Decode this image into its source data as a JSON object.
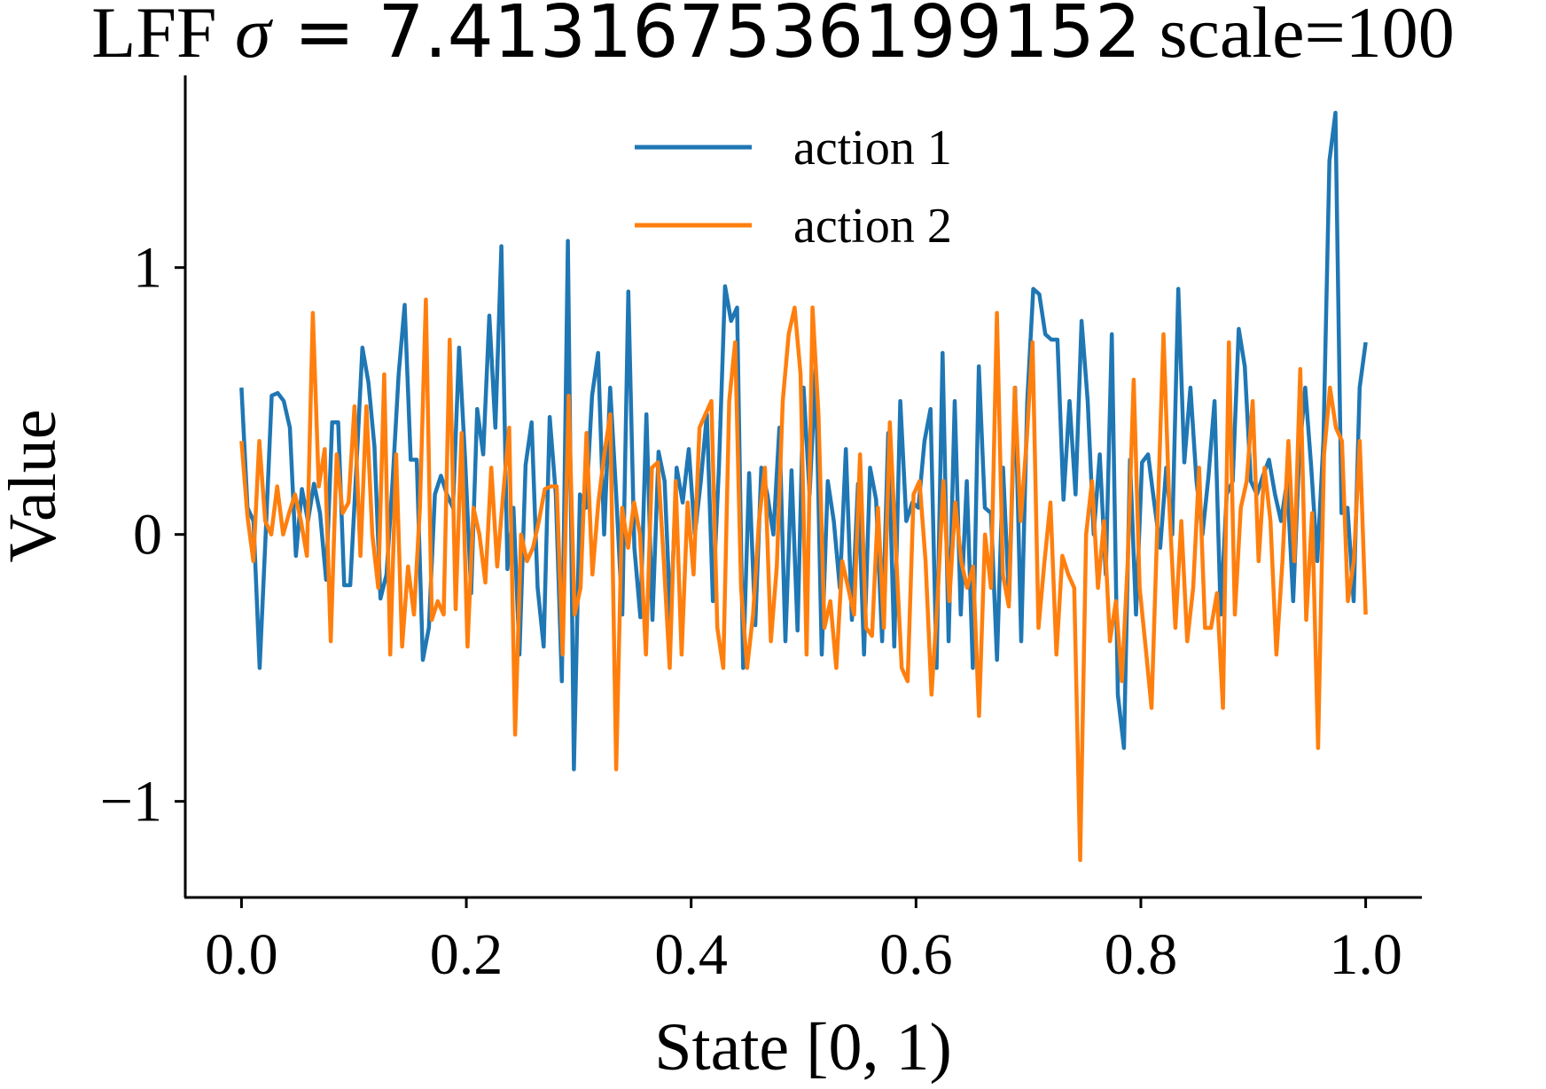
{
  "chart_data": {
    "type": "line",
    "title_prefix": "LFF ",
    "title_sigma_symbol": "σ",
    "title_sigma_value": " = 7.413167536199152",
    "title_suffix": " scale=100",
    "xlabel": "State [0, 1)",
    "ylabel": "Value",
    "xlim": [
      -0.05,
      1.05
    ],
    "ylim": [
      -1.36,
      1.72
    ],
    "xticks": [
      0.0,
      0.2,
      0.4,
      0.6,
      0.8,
      1.0
    ],
    "xtick_labels": [
      "0.0",
      "0.2",
      "0.4",
      "0.6",
      "0.8",
      "1.0"
    ],
    "yticks": [
      -1,
      0,
      1
    ],
    "ytick_labels": [
      "−1",
      "0",
      "1"
    ],
    "grid": false,
    "legend_position": "top-center",
    "series": [
      {
        "name": "action 1",
        "color": "#1f77b4",
        "values": [
          0.55,
          0.1,
          0.05,
          -0.5,
          0.0,
          0.52,
          0.53,
          0.5,
          0.4,
          -0.08,
          0.17,
          0.05,
          0.19,
          0.08,
          -0.17,
          0.42,
          0.42,
          -0.19,
          -0.19,
          0.25,
          0.7,
          0.57,
          0.33,
          -0.24,
          -0.15,
          0.2,
          0.6,
          0.86,
          0.28,
          0.28,
          -0.47,
          -0.35,
          0.15,
          0.22,
          0.15,
          0.1,
          0.7,
          0.28,
          -0.22,
          0.47,
          0.3,
          0.82,
          0.4,
          1.08,
          -0.13,
          0.1,
          -0.45,
          0.26,
          0.42,
          -0.2,
          -0.42,
          0.44,
          0.15,
          -0.55,
          1.1,
          -0.88,
          0.15,
          0.1,
          0.52,
          0.68,
          0.0,
          0.55,
          0.15,
          -0.3,
          0.91,
          -0.05,
          -0.31,
          0.45,
          -0.32,
          0.31,
          0.2,
          -0.33,
          0.25,
          0.12,
          0.32,
          0.0,
          0.2,
          0.45,
          -0.25,
          0.25,
          0.93,
          0.8,
          0.85,
          -0.5,
          0.23,
          -0.34,
          0.25,
          0.15,
          0.0,
          0.4,
          -0.4,
          0.24,
          -0.36,
          0.55,
          0.15,
          0.62,
          -0.45,
          0.2,
          0.05,
          -0.2,
          0.32,
          -0.32,
          0.19,
          -0.45,
          0.25,
          0.13,
          -0.4,
          0.38,
          -0.42,
          0.5,
          0.05,
          0.12,
          0.1,
          0.35,
          0.47,
          -0.5,
          0.68,
          -0.4,
          0.5,
          -0.3,
          0.2,
          -0.5,
          0.63,
          0.1,
          0.08,
          -0.47,
          0.25,
          -0.25,
          0.55,
          -0.4,
          0.5,
          0.92,
          0.9,
          0.75,
          0.73,
          0.73,
          0.13,
          0.5,
          0.15,
          0.8,
          0.5,
          0.0,
          0.3,
          -0.15,
          0.75,
          -0.6,
          -0.8,
          0.28,
          -0.3,
          0.27,
          0.3,
          0.12,
          -0.05,
          0.25,
          0.0,
          0.92,
          0.27,
          0.55,
          0.2,
          0.0,
          0.22,
          0.5,
          -0.3,
          0.15,
          0.2,
          0.77,
          0.63,
          0.2,
          0.15,
          0.22,
          0.28,
          0.15,
          0.05,
          0.2,
          -0.25,
          0.3,
          0.55,
          0.25,
          -0.1,
          0.35,
          1.4,
          1.58,
          0.08,
          0.1,
          -0.25,
          0.55,
          0.72
        ]
      },
      {
        "name": "action 2",
        "color": "#ff7f0e",
        "values": [
          0.35,
          0.07,
          -0.1,
          0.35,
          0.05,
          0.0,
          0.18,
          0.0,
          0.08,
          0.15,
          0.05,
          -0.08,
          0.83,
          0.18,
          0.32,
          -0.4,
          0.3,
          0.08,
          0.12,
          0.48,
          -0.08,
          0.48,
          0.0,
          -0.2,
          0.6,
          -0.45,
          0.3,
          -0.42,
          -0.12,
          -0.3,
          0.1,
          0.88,
          -0.32,
          -0.25,
          -0.3,
          0.73,
          -0.28,
          0.38,
          -0.42,
          0.1,
          0.0,
          -0.18,
          0.25,
          -0.12,
          0.15,
          0.4,
          -0.75,
          0.0,
          -0.1,
          -0.05,
          0.05,
          0.17,
          0.18,
          0.18,
          -0.45,
          0.52,
          -0.3,
          -0.2,
          0.38,
          -0.15,
          0.12,
          0.3,
          0.45,
          -0.88,
          0.1,
          -0.05,
          0.12,
          0.0,
          -0.45,
          0.25,
          0.27,
          -0.1,
          -0.5,
          0.2,
          -0.45,
          0.12,
          -0.15,
          0.4,
          0.45,
          0.5,
          -0.35,
          -0.5,
          0.5,
          0.72,
          -0.2,
          -0.5,
          -0.3,
          0.05,
          0.25,
          -0.4,
          -0.12,
          0.5,
          0.75,
          0.85,
          0.6,
          -0.45,
          0.85,
          0.45,
          -0.35,
          -0.25,
          -0.5,
          -0.1,
          -0.2,
          -0.3,
          0.3,
          -0.35,
          -0.38,
          0.1,
          -0.35,
          0.42,
          -0.05,
          -0.5,
          -0.55,
          0.15,
          0.2,
          -0.1,
          -0.6,
          -0.25,
          0.2,
          -0.25,
          0.12,
          -0.1,
          -0.2,
          -0.12,
          -0.68,
          0.0,
          -0.2,
          0.83,
          -0.15,
          -0.27,
          0.55,
          0.05,
          0.35,
          0.72,
          -0.35,
          -0.1,
          0.12,
          -0.45,
          -0.08,
          -0.15,
          -0.2,
          -1.22,
          0.0,
          0.2,
          -0.2,
          0.05,
          -0.4,
          -0.25,
          -0.55,
          -0.1,
          0.58,
          -0.2,
          -0.42,
          -0.65,
          0.05,
          0.75,
          0.1,
          -0.35,
          0.05,
          -0.4,
          -0.2,
          0.25,
          -0.35,
          -0.35,
          -0.22,
          -0.65,
          0.72,
          -0.3,
          0.1,
          0.2,
          0.5,
          -0.1,
          0.25,
          0.05,
          -0.45,
          -0.1,
          0.35,
          -0.1,
          0.62,
          -0.32,
          0.08,
          -0.8,
          0.3,
          0.55,
          0.4,
          0.35,
          -0.25,
          -0.1,
          0.35,
          -0.3
        ]
      }
    ]
  }
}
